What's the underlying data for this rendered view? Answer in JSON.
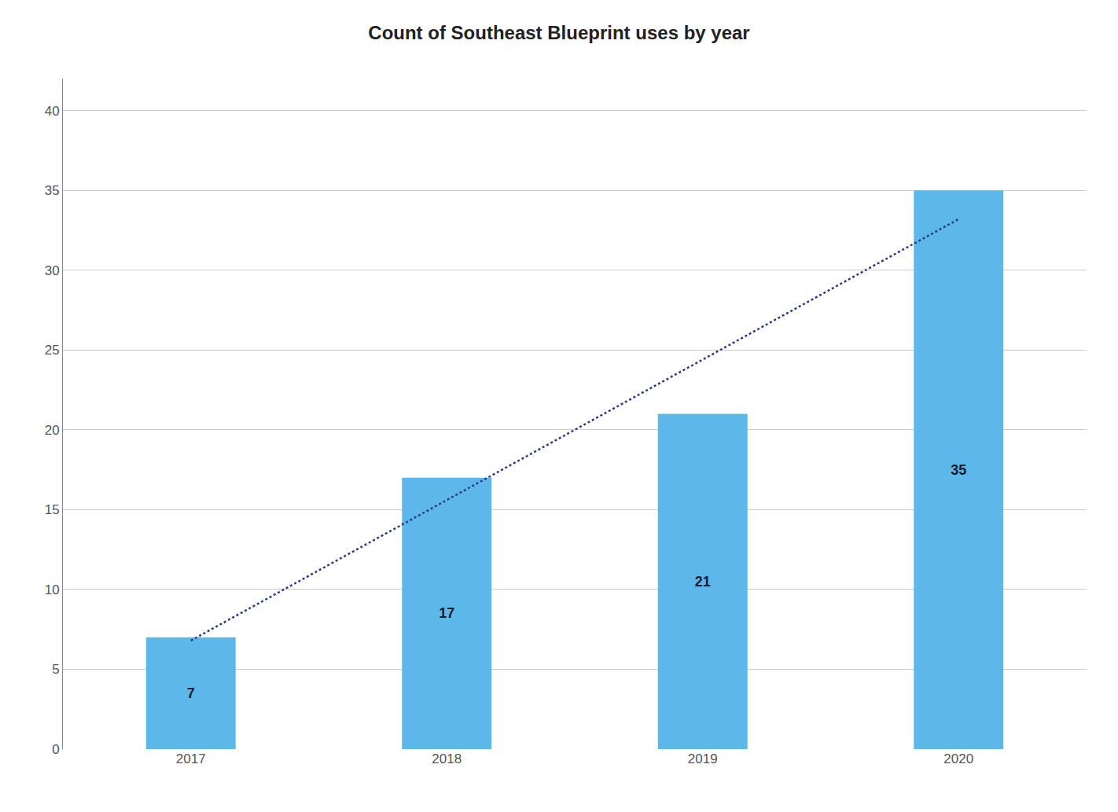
{
  "chart_data": {
    "type": "bar",
    "title": "Count of Southeast Blueprint uses by year",
    "categories": [
      "2017",
      "2018",
      "2019",
      "2020"
    ],
    "series": [
      {
        "type": "bar",
        "color": "#5BB8E8",
        "values": [
          7,
          17,
          21,
          35
        ]
      },
      {
        "type": "line",
        "color": "#2a3a8a",
        "line_style": "dotted",
        "values": [
          6.8,
          15.6,
          24.4,
          33.2
        ]
      }
    ],
    "ylim": [
      0,
      42
    ],
    "yticks": [
      0,
      5,
      10,
      15,
      20,
      25,
      30,
      35,
      40
    ],
    "grid": true,
    "data_labels": true
  }
}
